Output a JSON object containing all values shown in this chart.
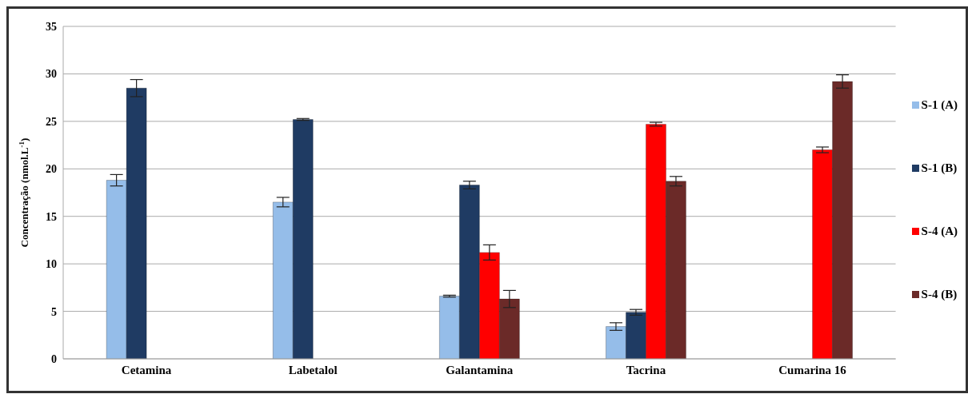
{
  "chart_data": {
    "type": "bar",
    "ylabel": "Concentração (nmol.L$^{-1}$)",
    "categories": [
      "Cetamina",
      "Labetalol",
      "Galantamina",
      "Tacrina",
      "Cumarina 16"
    ],
    "series": [
      {
        "name": "S-1 (A)",
        "color": "#95bde9",
        "values": [
          18.8,
          16.5,
          6.6,
          3.4,
          0
        ],
        "errors": [
          0.6,
          0.5,
          0.1,
          0.4,
          null
        ]
      },
      {
        "name": "S-1 (B)",
        "color": "#1f3b63",
        "values": [
          28.5,
          25.2,
          18.3,
          4.9,
          0
        ],
        "errors": [
          0.9,
          0.1,
          0.4,
          0.3,
          null
        ]
      },
      {
        "name": "S-4 (A)",
        "color": "#ff0000",
        "values": [
          0,
          0,
          11.2,
          24.7,
          22.0
        ],
        "errors": [
          null,
          null,
          0.8,
          0.2,
          0.3
        ]
      },
      {
        "name": "S-4 (B)",
        "color": "#6b2a28",
        "values": [
          0,
          0,
          6.3,
          18.7,
          29.2
        ],
        "errors": [
          null,
          null,
          0.9,
          0.5,
          0.7
        ]
      }
    ],
    "ylim": [
      0,
      35
    ],
    "yticks": [
      0,
      5,
      10,
      15,
      20,
      25,
      30,
      35
    ],
    "grid": "y",
    "legend": "right"
  }
}
